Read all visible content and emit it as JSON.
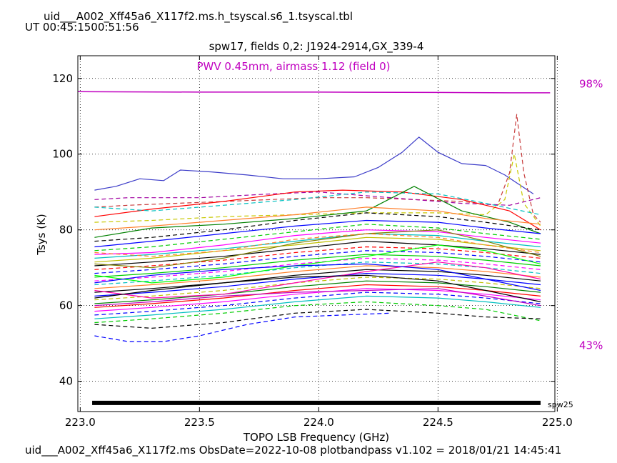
{
  "header": {
    "filename": "uid___A002_Xff45a6_X117f2.ms.h_tsyscal.s6_1.tsyscal.tbl",
    "ut_range": "UT 00:45:1500:51:56"
  },
  "footer": {
    "caption": "uid___A002_Xff45a6_X117f2.ms  ObsDate=2022-10-08   plotbandpass v1.102 = 2018/01/21 14:45:41"
  },
  "chart_data": {
    "type": "line",
    "title": "spw17,  fields 0,2: J1924-2914,GX_339-4",
    "annotation": "PWV 0.45mm, airmass 1.12 (field 0)",
    "xlabel": "TOPO LSB Frequency (GHz)",
    "ylabel": "Tsys (K)",
    "xlim": [
      222.99,
      224.99
    ],
    "ylim": [
      32,
      126
    ],
    "xticks": [
      223.0,
      223.5,
      224.0,
      224.5,
      225.0
    ],
    "xtick_labels": [
      "223.0",
      "223.5",
      "224.0",
      "224.5",
      "225.0"
    ],
    "yticks": [
      40,
      60,
      80,
      100,
      120
    ],
    "yticks_labels": [
      "40",
      "60",
      "80",
      "100",
      "120"
    ],
    "grid": true,
    "right_labels": [
      {
        "text": "98%",
        "y": 118.5
      },
      {
        "text": "43%",
        "y": 49.5
      }
    ],
    "spw_bar": {
      "x": [
        223.05,
        224.93
      ],
      "y": 34.3,
      "label": "spw25"
    },
    "transmission": {
      "x": [
        222.99,
        223.5,
        224.0,
        224.5,
        224.8,
        224.97
      ],
      "values": [
        116.5,
        116.4,
        116.4,
        116.3,
        116.2,
        116.2
      ],
      "color": "#c000c0"
    },
    "series": [
      {
        "x": [
          223.06,
          223.15,
          223.25,
          223.35,
          223.42,
          223.55,
          223.7,
          223.85,
          224.0,
          224.15,
          224.25,
          224.35,
          224.42,
          224.5,
          224.6,
          224.7,
          224.78,
          224.9
        ],
        "values": [
          90.5,
          91.5,
          93.5,
          93.0,
          95.8,
          95.3,
          94.5,
          93.5,
          93.5,
          94.0,
          96.5,
          100.5,
          104.5,
          100.5,
          97.5,
          97.0,
          94.5,
          89.5
        ],
        "color": "#3b3bc8",
        "dash": false
      },
      {
        "x": [
          223.06,
          223.2,
          223.4,
          223.6,
          223.8,
          224.0,
          224.2,
          224.4,
          224.6,
          224.75,
          224.8,
          224.83,
          224.86,
          224.9,
          224.93
        ],
        "values": [
          86.0,
          86.5,
          87.0,
          87.5,
          88.0,
          88.5,
          88.5,
          88.0,
          87.5,
          86.5,
          95.0,
          110.5,
          95.0,
          84.0,
          82.0
        ],
        "color": "#c83c3c",
        "dash": true
      },
      {
        "x": [
          223.06,
          223.3,
          223.6,
          223.9,
          224.2,
          224.5,
          224.7,
          224.78,
          224.82,
          224.86,
          224.93
        ],
        "values": [
          82.0,
          82.5,
          83.5,
          84.0,
          84.5,
          84.5,
          84.0,
          88.0,
          100.0,
          87.0,
          81.0
        ],
        "color": "#c8c800",
        "dash": true
      },
      {
        "x": [
          223.06,
          223.2,
          223.5,
          223.8,
          224.0,
          224.2,
          224.4,
          224.6,
          224.8,
          224.93
        ],
        "values": [
          88.0,
          88.5,
          88.5,
          89.5,
          90.0,
          89.0,
          88.0,
          87.0,
          86.5,
          88.5
        ],
        "color": "#a000a0",
        "dash": true
      },
      {
        "x": [
          223.06,
          223.3,
          223.6,
          223.9,
          224.1,
          224.35,
          224.6,
          224.8,
          224.93
        ],
        "values": [
          83.5,
          85.5,
          87.5,
          90.0,
          90.5,
          90.0,
          88.0,
          85.0,
          80.0
        ],
        "color": "#ff0000",
        "dash": false
      },
      {
        "x": [
          223.06,
          223.3,
          223.6,
          223.9,
          224.2,
          224.5,
          224.7,
          224.93
        ],
        "values": [
          86.0,
          85.0,
          86.5,
          88.0,
          90.0,
          89.5,
          87.0,
          84.0
        ],
        "color": "#00c0c0",
        "dash": true
      },
      {
        "x": [
          223.06,
          223.3,
          223.6,
          223.9,
          224.2,
          224.4,
          224.6,
          224.8,
          224.93
        ],
        "values": [
          78.0,
          80.5,
          81.5,
          83.0,
          85.0,
          91.5,
          85.0,
          82.0,
          79.0
        ],
        "color": "#008000",
        "dash": false
      },
      {
        "x": [
          223.06,
          223.3,
          223.6,
          223.9,
          224.2,
          224.5,
          224.7,
          224.93
        ],
        "values": [
          80.0,
          81.0,
          82.5,
          84.0,
          86.0,
          85.0,
          83.0,
          81.5
        ],
        "color": "#ff7f2a",
        "dash": false
      },
      {
        "x": [
          223.06,
          223.3,
          223.6,
          223.9,
          224.2,
          224.5,
          224.7,
          224.93
        ],
        "values": [
          77.0,
          78.0,
          80.0,
          82.5,
          84.5,
          83.5,
          82.0,
          80.0
        ],
        "color": "#000000",
        "dash": true
      },
      {
        "x": [
          223.06,
          223.3,
          223.6,
          223.9,
          224.2,
          224.5,
          224.7,
          224.93
        ],
        "values": [
          75.5,
          77.0,
          79.0,
          81.0,
          82.5,
          82.0,
          80.5,
          79.0
        ],
        "color": "#0000ff",
        "dash": false
      },
      {
        "x": [
          223.06,
          223.3,
          223.6,
          223.9,
          224.2,
          224.5,
          224.7,
          224.93
        ],
        "values": [
          74.5,
          75.5,
          77.5,
          79.5,
          81.5,
          80.5,
          79.0,
          77.5
        ],
        "color": "#00cc00",
        "dash": true
      },
      {
        "x": [
          223.06,
          223.3,
          223.6,
          223.9,
          224.2,
          224.5,
          224.7,
          224.93
        ],
        "values": [
          73.5,
          74.0,
          76.0,
          78.5,
          80.0,
          79.5,
          78.0,
          76.5
        ],
        "color": "#ff00ff",
        "dash": false
      },
      {
        "x": [
          223.06,
          223.3,
          223.6,
          223.9,
          224.2,
          224.5,
          224.7,
          224.93
        ],
        "values": [
          72.5,
          73.5,
          75.0,
          77.0,
          79.0,
          78.5,
          77.0,
          75.5
        ],
        "color": "#00bfbf",
        "dash": false
      },
      {
        "x": [
          223.06,
          223.3,
          223.6,
          223.9,
          224.2,
          224.5,
          224.7,
          224.93
        ],
        "values": [
          71.5,
          72.5,
          74.5,
          76.0,
          78.0,
          77.5,
          76.0,
          74.5
        ],
        "color": "#bfbf00",
        "dash": false
      },
      {
        "x": [
          223.06,
          223.3,
          223.6,
          223.9,
          224.2,
          224.5,
          224.7,
          224.93
        ],
        "values": [
          70.5,
          71.5,
          73.0,
          75.0,
          77.0,
          76.0,
          75.0,
          73.5
        ],
        "color": "#000000",
        "dash": false
      },
      {
        "x": [
          223.06,
          223.3,
          223.6,
          223.9,
          224.2,
          224.5,
          224.7,
          224.93
        ],
        "values": [
          69.5,
          70.5,
          72.0,
          74.0,
          75.5,
          75.0,
          74.0,
          72.5
        ],
        "color": "#ff0000",
        "dash": true
      },
      {
        "x": [
          223.06,
          223.3,
          223.6,
          223.9,
          224.2,
          224.5,
          224.7,
          224.93
        ],
        "values": [
          68.5,
          69.5,
          71.0,
          73.0,
          74.5,
          74.0,
          73.0,
          71.5
        ],
        "color": "#0000ff",
        "dash": true
      },
      {
        "x": [
          223.06,
          223.3,
          223.6,
          223.9,
          224.2,
          224.5,
          224.7,
          224.93
        ],
        "values": [
          67.5,
          68.5,
          70.0,
          72.0,
          73.5,
          73.0,
          72.0,
          70.5
        ],
        "color": "#00cc00",
        "dash": false
      },
      {
        "x": [
          223.06,
          223.3,
          223.6,
          223.9,
          224.2,
          224.5,
          224.7,
          224.93
        ],
        "values": [
          66.5,
          67.5,
          69.0,
          71.0,
          72.5,
          72.0,
          71.0,
          69.5
        ],
        "color": "#ff00ff",
        "dash": true
      },
      {
        "x": [
          223.06,
          223.3,
          223.6,
          223.9,
          224.2,
          224.5,
          224.7,
          224.93
        ],
        "values": [
          65.5,
          66.5,
          68.0,
          70.0,
          71.5,
          71.0,
          70.0,
          68.5
        ],
        "color": "#00bfbf",
        "dash": true
      },
      {
        "x": [
          223.06,
          223.3,
          223.6,
          223.9,
          224.2,
          224.5,
          224.7,
          224.93
        ],
        "values": [
          64.5,
          65.5,
          67.0,
          69.0,
          70.5,
          70.0,
          69.0,
          67.5
        ],
        "color": "#ff7f2a",
        "dash": false
      },
      {
        "x": [
          223.06,
          223.3,
          223.6,
          223.9,
          224.2,
          224.5,
          224.7,
          224.93
        ],
        "values": [
          63.5,
          64.5,
          66.0,
          68.0,
          69.5,
          69.0,
          68.0,
          66.5
        ],
        "color": "#000000",
        "dash": false
      },
      {
        "x": [
          223.06,
          223.3,
          223.6,
          223.9,
          224.2,
          224.5,
          224.7,
          224.93
        ],
        "values": [
          62.5,
          63.5,
          65.0,
          67.0,
          68.5,
          68.0,
          67.0,
          65.5
        ],
        "color": "#0000ff",
        "dash": false
      },
      {
        "x": [
          223.06,
          223.3,
          223.6,
          223.9,
          224.2,
          224.5,
          224.7,
          224.93
        ],
        "values": [
          61.5,
          62.5,
          64.0,
          66.0,
          67.5,
          67.0,
          66.0,
          64.5
        ],
        "color": "#bfbf00",
        "dash": true
      },
      {
        "x": [
          223.06,
          223.3,
          223.6,
          223.9,
          224.2,
          224.5,
          224.7,
          224.93
        ],
        "values": [
          60.5,
          61.5,
          63.0,
          65.0,
          66.5,
          66.0,
          65.0,
          63.5
        ],
        "color": "#008000",
        "dash": false
      },
      {
        "x": [
          223.06,
          223.3,
          223.6,
          223.9,
          224.2,
          224.5,
          224.7,
          224.93
        ],
        "values": [
          59.5,
          60.5,
          62.0,
          64.0,
          65.5,
          65.0,
          64.0,
          62.5
        ],
        "color": "#ff0000",
        "dash": false
      },
      {
        "x": [
          223.06,
          223.3,
          223.6,
          223.9,
          224.2,
          224.5,
          224.7,
          224.93
        ],
        "values": [
          58.5,
          59.5,
          61.0,
          63.0,
          64.5,
          64.0,
          63.0,
          61.5
        ],
        "color": "#ff00ff",
        "dash": false
      },
      {
        "x": [
          223.06,
          223.3,
          223.6,
          223.9,
          224.2,
          224.5,
          224.7,
          224.93
        ],
        "values": [
          57.5,
          58.5,
          60.0,
          62.0,
          63.5,
          63.0,
          62.0,
          60.5
        ],
        "color": "#0000ff",
        "dash": true
      },
      {
        "x": [
          223.06,
          223.3,
          223.6,
          223.9,
          224.2,
          224.5,
          224.7,
          224.93
        ],
        "values": [
          56.5,
          57.5,
          59.0,
          61.0,
          62.5,
          62.0,
          61.0,
          59.5
        ],
        "color": "#00bfbf",
        "dash": false
      },
      {
        "x": [
          223.06,
          223.3,
          223.6,
          223.9,
          224.2,
          224.5,
          224.7,
          224.93
        ],
        "values": [
          55.5,
          56.5,
          58.0,
          60.0,
          61.0,
          60.0,
          59.0,
          56.0
        ],
        "color": "#00cc00",
        "dash": true
      },
      {
        "x": [
          223.06,
          223.3,
          223.6,
          223.9,
          224.2,
          224.5,
          224.7,
          224.93
        ],
        "values": [
          55.0,
          54.0,
          55.5,
          58.0,
          59.0,
          58.0,
          57.0,
          56.5
        ],
        "color": "#000000",
        "dash": true
      },
      {
        "x": [
          223.06,
          223.2,
          223.35,
          223.5,
          223.7,
          223.9,
          224.1,
          224.3
        ],
        "values": [
          52.0,
          50.5,
          50.5,
          52.0,
          55.0,
          57.0,
          57.5,
          58.0
        ],
        "color": "#0000ff",
        "dash": true
      },
      {
        "x": [
          223.06,
          223.3,
          223.6,
          223.9,
          224.2,
          224.5,
          224.7,
          224.93
        ],
        "values": [
          71.0,
          70.0,
          72.5,
          76.5,
          79.0,
          80.0,
          77.0,
          73.0
        ],
        "color": "#7f7f00",
        "dash": false
      },
      {
        "x": [
          223.06,
          223.3,
          223.6,
          223.9,
          224.2,
          224.5,
          224.7,
          224.93
        ],
        "values": [
          68.0,
          66.0,
          67.5,
          70.5,
          73.0,
          76.0,
          74.5,
          71.0
        ],
        "color": "#00ff00",
        "dash": false
      },
      {
        "x": [
          223.06,
          223.3,
          223.6,
          223.9,
          224.2,
          224.5,
          224.7,
          224.93
        ],
        "values": [
          64.0,
          62.0,
          63.0,
          66.0,
          69.0,
          71.5,
          70.0,
          67.0
        ],
        "color": "#ff00aa",
        "dash": false
      },
      {
        "x": [
          223.06,
          223.3,
          223.6,
          223.9,
          224.2,
          224.5,
          224.7,
          224.93
        ],
        "values": [
          60.0,
          61.0,
          62.5,
          63.5,
          64.0,
          64.5,
          62.5,
          60.0
        ],
        "color": "#c000c0",
        "dash": false
      },
      {
        "x": [
          223.06,
          223.3,
          223.6,
          223.9,
          224.2,
          224.5,
          224.7,
          224.93
        ],
        "values": [
          74.0,
          73.0,
          74.5,
          77.5,
          79.0,
          78.0,
          76.0,
          74.0
        ],
        "color": "#ff7f2a",
        "dash": true
      },
      {
        "x": [
          223.06,
          223.3,
          223.6,
          223.9,
          224.2,
          224.5,
          224.7,
          224.93
        ],
        "values": [
          66.0,
          68.0,
          69.5,
          70.5,
          71.0,
          69.5,
          67.0,
          64.0
        ],
        "color": "#0000ff",
        "dash": false
      },
      {
        "x": [
          223.06,
          223.3,
          223.6,
          223.9,
          224.2,
          224.5,
          224.7,
          224.93
        ],
        "values": [
          62.0,
          64.0,
          66.0,
          67.5,
          68.0,
          66.5,
          64.0,
          61.0
        ],
        "color": "#000000",
        "dash": false
      }
    ]
  }
}
